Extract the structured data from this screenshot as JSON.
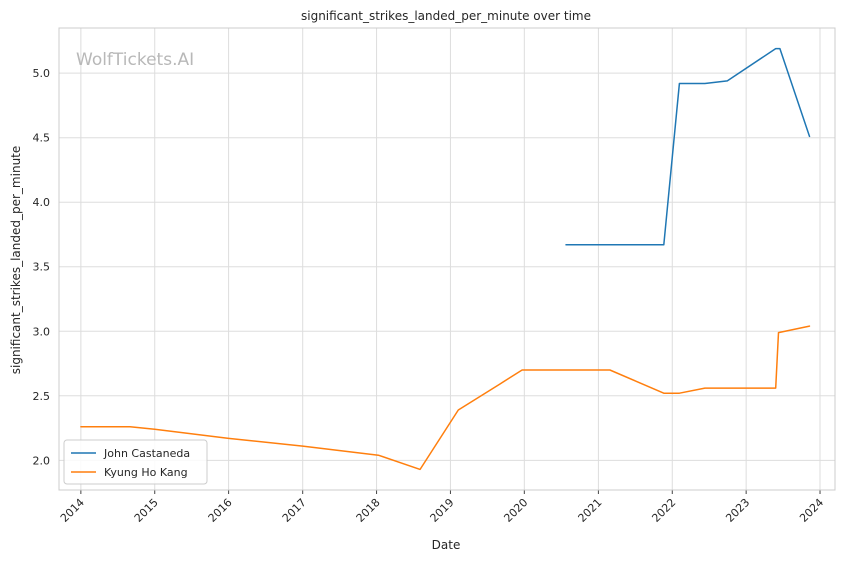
{
  "chart_data": {
    "type": "line",
    "title": "significant_strikes_landed_per_minute over time",
    "xlabel": "Date",
    "ylabel": "significant_strikes_landed_per_minute",
    "watermark": "WolfTickets.AI",
    "x_ticks": [
      "2014",
      "2015",
      "2016",
      "2017",
      "2018",
      "2019",
      "2020",
      "2021",
      "2022",
      "2023",
      "2024"
    ],
    "y_ticks": [
      "2.0",
      "2.5",
      "3.0",
      "3.5",
      "4.0",
      "4.5",
      "5.0"
    ],
    "xlim": [
      "2013-09-15",
      "2024-03-15"
    ],
    "ylim": [
      1.77,
      5.35
    ],
    "grid": true,
    "legend_position": "lower-left",
    "series": [
      {
        "name": "John Castaneda",
        "color": "#1f77b4",
        "points": [
          [
            "2020-07-25",
            3.67
          ],
          [
            "2021-11-20",
            3.67
          ],
          [
            "2022-02-05",
            4.92
          ],
          [
            "2022-06-11",
            4.92
          ],
          [
            "2022-09-30",
            4.94
          ],
          [
            "2023-05-27",
            5.19
          ],
          [
            "2023-06-17",
            5.19
          ],
          [
            "2023-11-10",
            4.51
          ]
        ]
      },
      {
        "name": "Kyung Ho Kang",
        "color": "#ff7f0e",
        "points": [
          [
            "2014-01-01",
            2.26
          ],
          [
            "2014-09-01",
            2.26
          ],
          [
            "2015-01-01",
            2.24
          ],
          [
            "2016-01-01",
            2.17
          ],
          [
            "2017-01-01",
            2.11
          ],
          [
            "2018-01-10",
            2.04
          ],
          [
            "2018-08-04",
            1.93
          ],
          [
            "2019-02-09",
            2.39
          ],
          [
            "2019-09-01",
            2.59
          ],
          [
            "2019-12-21",
            2.7
          ],
          [
            "2021-02-27",
            2.7
          ],
          [
            "2021-11-20",
            2.52
          ],
          [
            "2022-02-05",
            2.52
          ],
          [
            "2022-06-11",
            2.56
          ],
          [
            "2023-05-27",
            2.56
          ],
          [
            "2023-06-10",
            2.99
          ],
          [
            "2023-11-10",
            3.04
          ]
        ]
      }
    ]
  }
}
